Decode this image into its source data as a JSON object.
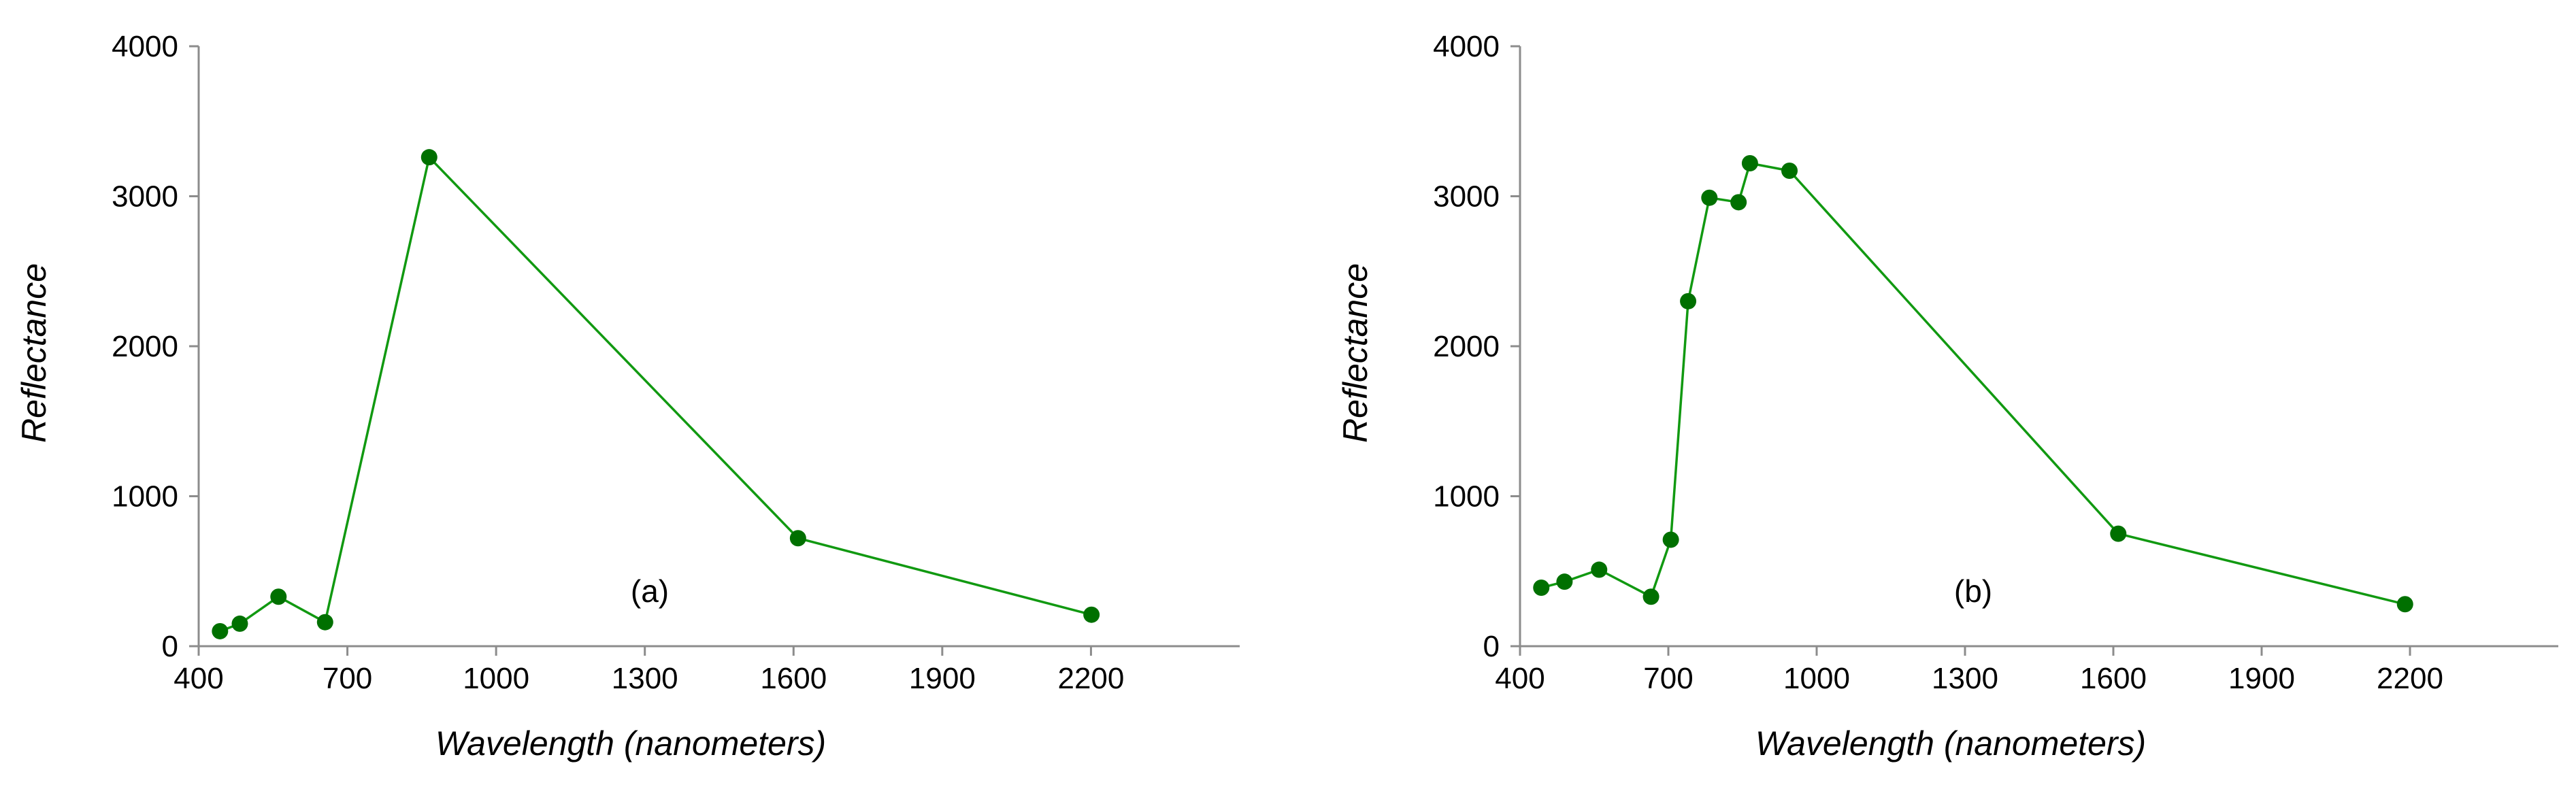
{
  "figure": {
    "background": "#ffffff",
    "series_color": "#007000",
    "line_color": "#119911"
  },
  "chart_data": [
    {
      "type": "line",
      "annotation": "(a)",
      "xlabel": "Wavelength (nanometers)",
      "ylabel": "Reflectance",
      "xlim": [
        400,
        2500
      ],
      "ylim": [
        0,
        4000
      ],
      "xticks": [
        400,
        700,
        1000,
        1300,
        1600,
        1900,
        2200
      ],
      "yticks": [
        0,
        1000,
        2000,
        3000,
        4000
      ],
      "grid": false,
      "series": [
        {
          "x": [
            443,
            483,
            561,
            655,
            865,
            1609,
            2201
          ],
          "y": [
            100,
            150,
            330,
            160,
            3260,
            720,
            210
          ]
        }
      ]
    },
    {
      "type": "line",
      "annotation": "(b)",
      "xlabel": "Wavelength (nanometers)",
      "ylabel": "Reflectance",
      "xlim": [
        400,
        2500
      ],
      "ylim": [
        0,
        4000
      ],
      "xticks": [
        400,
        700,
        1000,
        1300,
        1600,
        1900,
        2200
      ],
      "yticks": [
        0,
        1000,
        2000,
        3000,
        4000
      ],
      "grid": false,
      "series": [
        {
          "x": [
            443,
            490,
            560,
            665,
            705,
            740,
            783,
            842,
            865,
            945,
            1610,
            2190
          ],
          "y": [
            390,
            430,
            510,
            330,
            710,
            2300,
            2990,
            2960,
            3220,
            3170,
            750,
            280
          ]
        }
      ]
    }
  ]
}
